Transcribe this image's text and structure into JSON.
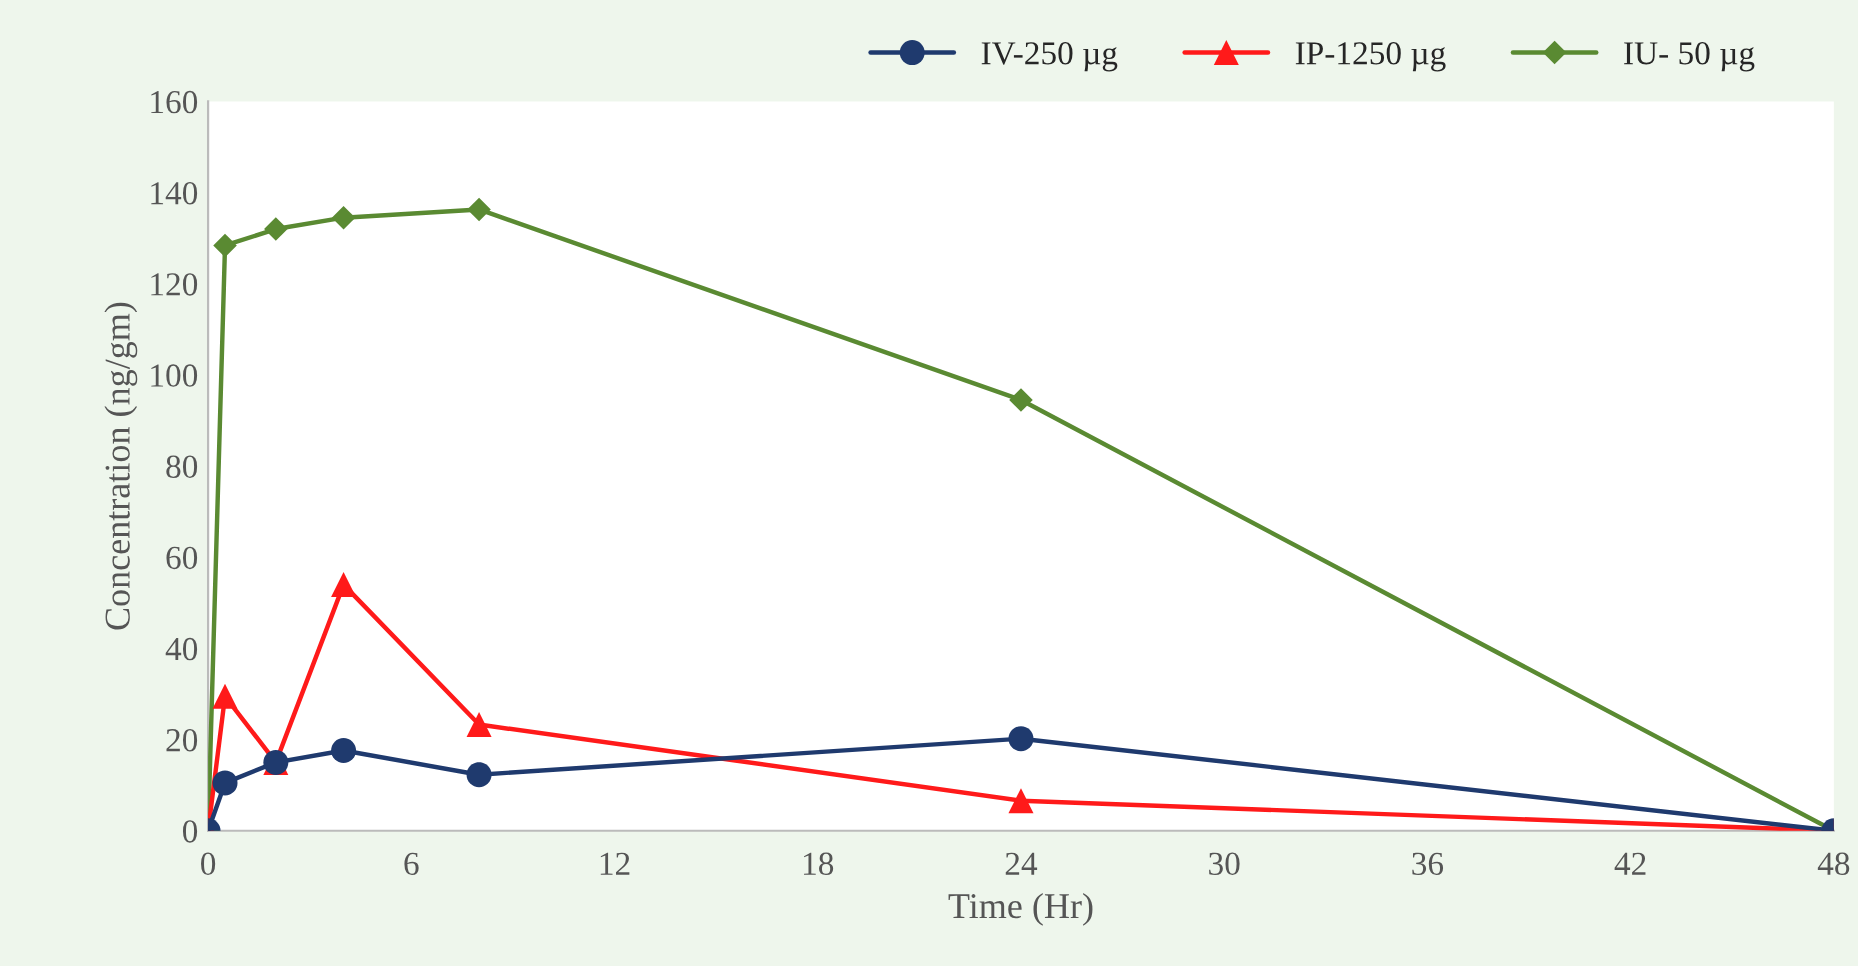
{
  "chart_data": {
    "type": "line",
    "xlabel": "Time (Hr)",
    "ylabel": "Concentration (ng/gm)",
    "series": [
      {
        "name": "IV-250 µg",
        "color": "#1f3a6e",
        "marker": "circle",
        "x": [
          0,
          0.5,
          2,
          4,
          8,
          24,
          48
        ],
        "values": [
          0,
          10.5,
          15,
          17.6,
          12.3,
          20.2,
          0
        ]
      },
      {
        "name": "IP-1250 µg",
        "color": "#ff1a1a",
        "marker": "triangle",
        "x": [
          0,
          0.5,
          2,
          4,
          8,
          24,
          48
        ],
        "values": [
          0,
          29.5,
          15,
          54,
          23.3,
          6.6,
          0
        ]
      },
      {
        "name": "IU- 50 µg",
        "color": "#5a8a32",
        "marker": "diamond",
        "x": [
          0,
          0.5,
          2,
          4,
          8,
          24,
          48
        ],
        "values": [
          0,
          128.4,
          132,
          134.5,
          136.3,
          94.5,
          0
        ]
      }
    ],
    "xlim": [
      0,
      48
    ],
    "xticks": [
      0,
      6,
      12,
      18,
      24,
      30,
      36,
      42,
      48
    ],
    "ylim": [
      0,
      160
    ],
    "yticks": [
      0,
      20,
      40,
      60,
      80,
      100,
      120,
      140,
      160
    ],
    "grid": false,
    "legend": "top right",
    "line_style": "solid"
  }
}
